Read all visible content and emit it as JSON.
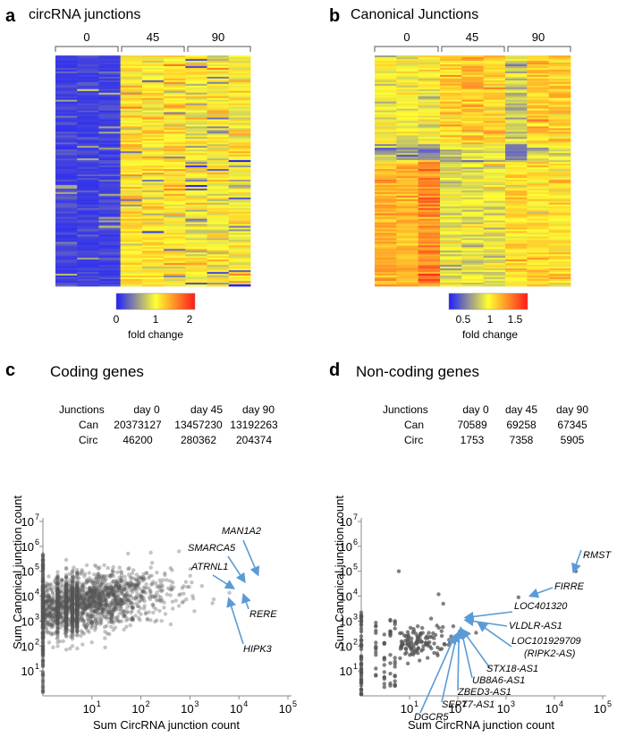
{
  "chart_data": [
    {
      "panel": "a",
      "type": "heatmap",
      "title": "circRNA  junctions",
      "columns": [
        "0",
        "45",
        "90"
      ],
      "colorbar": {
        "ticks": [
          "0",
          "1",
          "2"
        ],
        "label": "fold change",
        "colors": [
          "#1f1fff",
          "#ffff33",
          "#ff1a1a"
        ]
      }
    },
    {
      "panel": "b",
      "type": "heatmap",
      "title": "Canonical Junctions",
      "columns": [
        "0",
        "45",
        "90"
      ],
      "colorbar": {
        "ticks": [
          "0.5",
          "1",
          "1.5"
        ],
        "label": "fold change",
        "colors": [
          "#1f1fff",
          "#ffff33",
          "#ff1a1a"
        ]
      }
    },
    {
      "panel": "c",
      "type": "scatter",
      "title": "Coding genes",
      "xlabel": "Sum CircRNA junction count",
      "ylabel": "Sum Canonical junction count",
      "xscale": "log",
      "yscale": "log",
      "xlim": [
        1,
        100000
      ],
      "ylim": [
        1,
        10000000
      ],
      "xticks": [
        "10",
        "10",
        "10",
        "10",
        "10"
      ],
      "xtick_exp": [
        "1",
        "2",
        "3",
        "4",
        "5"
      ],
      "yticks": [
        "10",
        "10",
        "10",
        "10",
        "10",
        "10",
        "10"
      ],
      "ytick_exp": [
        "1",
        "2",
        "3",
        "4",
        "5",
        "6",
        "7"
      ],
      "table": {
        "header": [
          "Junctions",
          "day 0",
          "day 45",
          "day 90"
        ],
        "rows": [
          [
            "Can",
            "20373127",
            "13457230",
            "13192263"
          ],
          [
            "Circ",
            "46200",
            "280362",
            "204374"
          ]
        ]
      },
      "annotations": [
        {
          "label": "MAN1A2",
          "x": 28000,
          "y": 75000
        },
        {
          "label": "SMARCA5",
          "x": 15000,
          "y": 40000
        },
        {
          "label": "ATRNL1",
          "x": 9000,
          "y": 22000
        },
        {
          "label": "RERE",
          "x": 14000,
          "y": 13000
        },
        {
          "label": "HIPK3",
          "x": 7000,
          "y": 9000
        }
      ]
    },
    {
      "panel": "d",
      "type": "scatter",
      "title": "Non-coding genes",
      "xlabel": "Sum CircRNA junction count",
      "ylabel": "Sum Canonical junction count",
      "xscale": "log",
      "yscale": "log",
      "xlim": [
        1,
        100000
      ],
      "ylim": [
        1,
        10000000
      ],
      "xticks": [
        "10",
        "10",
        "10",
        "10",
        "10"
      ],
      "xtick_exp": [
        "1",
        "2",
        "3",
        "4",
        "5"
      ],
      "yticks": [
        "10",
        "10",
        "10",
        "10",
        "10",
        "10",
        "10"
      ],
      "ytick_exp": [
        "1",
        "2",
        "3",
        "4",
        "5",
        "6",
        "7"
      ],
      "table": {
        "header": [
          "Junctions",
          "day 0",
          "day 45",
          "day 90"
        ],
        "rows": [
          [
            "Can",
            "70589",
            "69258",
            "67345"
          ],
          [
            "Circ",
            "1753",
            "7358",
            "5905"
          ]
        ]
      },
      "annotations": [
        {
          "label": "RMST",
          "x": 28000,
          "y": 100000
        },
        {
          "label": "FIRRE",
          "x": 3500,
          "y": 11000
        },
        {
          "label": "LOC401320",
          "x": 160,
          "y": 1500
        },
        {
          "label": "VLDLR-AS1",
          "x": 160,
          "y": 1200
        },
        {
          "label": "LOC101929709",
          "x": 300,
          "y": 900
        },
        {
          "label": "(RIPK2-AS)",
          "x": 300,
          "y": 900
        },
        {
          "label": "STX18-AS1",
          "x": 140,
          "y": 500
        },
        {
          "label": "UB8A6-AS1",
          "x": 130,
          "y": 600
        },
        {
          "label": "ZBED3-AS1",
          "x": 120,
          "y": 450
        },
        {
          "label": "SEPT7-AS1",
          "x": 110,
          "y": 350
        },
        {
          "label": "DGCR5",
          "x": 100,
          "y": 300
        }
      ]
    }
  ],
  "panel_letters": [
    "a",
    "b",
    "c",
    "d"
  ],
  "point_color": "#555555",
  "arrow_color": "#5b9bd5"
}
